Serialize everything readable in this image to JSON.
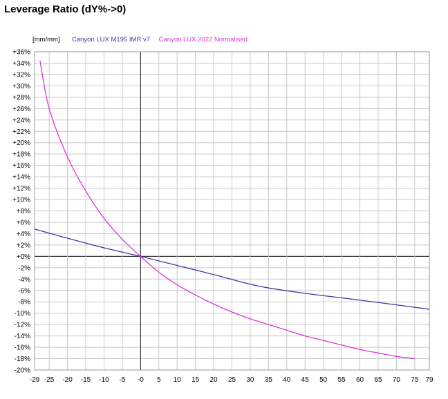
{
  "title": "Leverage Ratio (dY%->0)",
  "chart_data": {
    "type": "line",
    "title": "Leverage Ratio (dY%->0)",
    "units_label": "[mm/mm]",
    "xlim": [
      -29,
      79
    ],
    "ylim": [
      -20,
      36
    ],
    "x_ticks": [
      -29,
      -25,
      -20,
      -15,
      -10,
      -5,
      0,
      5,
      10,
      15,
      20,
      25,
      30,
      35,
      40,
      45,
      50,
      55,
      60,
      65,
      70,
      75,
      79
    ],
    "x_tick_labels": [
      "-29",
      "-25",
      "-20",
      "-15",
      "-10",
      "-5",
      "-0",
      "5",
      "10",
      "15",
      "20",
      "25",
      "30",
      "35",
      "40",
      "45",
      "50",
      "55",
      "60",
      "65",
      "70",
      "75",
      "79"
    ],
    "y_ticks": [
      36,
      34,
      32,
      30,
      28,
      26,
      24,
      22,
      20,
      18,
      16,
      14,
      12,
      10,
      8,
      6,
      4,
      2,
      0,
      -2,
      -4,
      -6,
      -8,
      -10,
      -12,
      -14,
      -16,
      -18,
      -20
    ],
    "y_tick_labels": [
      "+36%",
      "+34%",
      "+32%",
      "+30%",
      "+28%",
      "+26%",
      "+24%",
      "+22%",
      "+20%",
      "+18%",
      "+16%",
      "+14%",
      "+12%",
      "+10%",
      "+8%",
      "+6%",
      "+4%",
      "+2%",
      "+0%",
      "-2%",
      "-4%",
      "-6%",
      "-8%",
      "-10%",
      "-12%",
      "-14%",
      "-16%",
      "-18%",
      "-20%"
    ],
    "grid": true,
    "legend_position": "top-left",
    "series": [
      {
        "name": "Canyon LUX M195 IMR v7",
        "color": "#3a3aa8",
        "x": [
          -29,
          -20,
          -10,
          0,
          10,
          20,
          32,
          45,
          60,
          79
        ],
        "y": [
          4.8,
          3.2,
          1.5,
          0,
          -1.6,
          -3.2,
          -5.2,
          -6.5,
          -7.7,
          -9.3
        ]
      },
      {
        "name": "Canyon LUX 2022 Normalised",
        "color": "#dd33dd",
        "x": [
          -27.5,
          -25,
          -20,
          -15,
          -10,
          -5,
          0,
          5,
          10,
          15,
          20,
          25,
          30,
          35,
          40,
          45,
          50,
          55,
          60,
          65,
          70,
          75
        ],
        "y": [
          34.4,
          26,
          17.5,
          11.5,
          6.7,
          3,
          0,
          -2.8,
          -5,
          -6.8,
          -8.4,
          -9.8,
          -11,
          -12,
          -13,
          -14,
          -14.8,
          -15.6,
          -16.4,
          -17,
          -17.6,
          -18
        ]
      }
    ]
  }
}
